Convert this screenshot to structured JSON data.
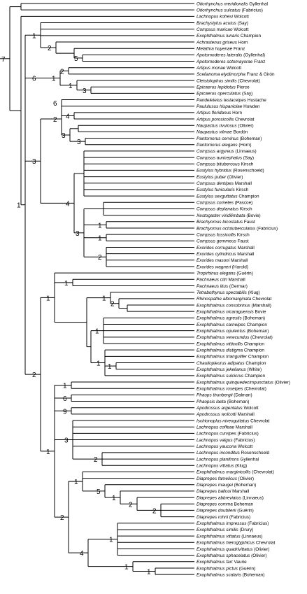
{
  "diagram": {
    "type": "cladogram",
    "taxa": [
      {
        "genus_species": "Otiorhynchus meridionalis",
        "authority": "Gyllenhal"
      },
      {
        "genus_species": "Otiorhynchus sulcatus",
        "authority": "(Fabricius)"
      },
      {
        "genus_species": "Lachnopus kofresi",
        "authority": "Wolcott"
      },
      {
        "genus_species": "Brachystylus acutus",
        "authority": "(Say)"
      },
      {
        "genus_species": "Compsus maricao",
        "authority": "Wolcott"
      },
      {
        "genus_species": "Exophthalmus lunaris",
        "authority": "Champion"
      },
      {
        "genus_species": "Achrastenus griseus",
        "authority": "Horn"
      },
      {
        "genus_species": "Melathra huyenae",
        "authority": "Franz"
      },
      {
        "genus_species": "Apotomoderes lateralis",
        "authority": "(Gyllenhal)"
      },
      {
        "genus_species": "Apotomoderes sotomayorae",
        "authority": "Franz"
      },
      {
        "genus_species": "Artipus monae",
        "authority": "Wolcott"
      },
      {
        "genus_species": "Scelianoma elydimorpha",
        "authority": "Franz & Girón"
      },
      {
        "genus_species": "Cleistolophus similis",
        "authority": "(Chevrolat)"
      },
      {
        "genus_species": "Epicaerus lepidotus",
        "authority": "Pierce"
      },
      {
        "genus_species": "Epicaerus operculatus",
        "authority": "(Say)"
      },
      {
        "genus_species": "Pandeleteius testaceipes",
        "authority": "Hustache"
      },
      {
        "genus_species": "Paululusus hispaniolae",
        "authority": "Howden"
      },
      {
        "genus_species": "Artipus floridanus",
        "authority": "Horn"
      },
      {
        "genus_species": "Artipus porosicollis",
        "authority": "Chevrolat"
      },
      {
        "genus_species": "Naupactus rivulosus",
        "authority": "(Olivier)"
      },
      {
        "genus_species": "Naupactus vilmae",
        "authority": "Bordón"
      },
      {
        "genus_species": "Pantomorus cervinus",
        "authority": "(Boheman)"
      },
      {
        "genus_species": "Pantomorus elegans",
        "authority": "(Horn)"
      },
      {
        "genus_species": "Compsus argyreus",
        "authority": "(Linnaeus)"
      },
      {
        "genus_species": "Compsus auricephalus",
        "authority": "(Say)"
      },
      {
        "genus_species": "Compsus bituberosus",
        "authority": "Kirsch"
      },
      {
        "genus_species": "Eustylus hybridus",
        "authority": "(Rosenschoeld)"
      },
      {
        "genus_species": "Eustylus puber",
        "authority": "(Olivier)"
      },
      {
        "genus_species": "Compsus dentipes",
        "authority": "Marshall"
      },
      {
        "genus_species": "Eustylus funicularis",
        "authority": "Kirsch"
      },
      {
        "genus_species": "Eustylus sexguttatus",
        "authority": "Champion"
      },
      {
        "genus_species": "Compsus cometes",
        "authority": "(Pascoe)"
      },
      {
        "genus_species": "Compsus deplanatus",
        "authority": "Kirsch"
      },
      {
        "genus_species": "Xestogaster viridilimbata",
        "authority": "(Bovie)"
      },
      {
        "genus_species": "Brachyomus bicostatus",
        "authority": "Faust"
      },
      {
        "genus_species": "Brachyomus octotuberculatus",
        "authority": "(Fabricius)"
      },
      {
        "genus_species": "Compsus fossicollis",
        "authority": "Kirsch"
      },
      {
        "genus_species": "Compsus gemmeus",
        "authority": "Faust"
      },
      {
        "genus_species": "Exorides corrugatus",
        "authority": "Marshall"
      },
      {
        "genus_species": "Exorides cylindricus",
        "authority": "Marshall"
      },
      {
        "genus_species": "Exorides masoni",
        "authority": "Marshall"
      },
      {
        "genus_species": "Exorides wagneri",
        "authority": "(Harold)"
      },
      {
        "genus_species": "Tropirhinus elegans",
        "authority": "(Guérin)"
      },
      {
        "genus_species": "Pachnaeus citri",
        "authority": "Marshall"
      },
      {
        "genus_species": "Pachnaeus litus",
        "authority": "(Germar)"
      },
      {
        "genus_species": "Tetrabothynus spectabilis",
        "authority": "(Klug)"
      },
      {
        "genus_species": "Rhinospathe albomarginata",
        "authority": "Chevrolat"
      },
      {
        "genus_species": "Exophthalmus consobrinus",
        "authority": "(Marshall)"
      },
      {
        "genus_species": "Exophthalmus nicaraguensis",
        "authority": "Bovie"
      },
      {
        "genus_species": "Exophthalmus agrestis",
        "authority": "(Boheman)"
      },
      {
        "genus_species": "Exophthalmus carneipes",
        "authority": "Champion"
      },
      {
        "genus_species": "Exophthalmus opulentus",
        "authority": "(Boheman)"
      },
      {
        "genus_species": "Exophthalmus verecundus",
        "authority": "(Chevrolat)"
      },
      {
        "genus_species": "Exophthalmus vitticollis",
        "authority": "Champion"
      },
      {
        "genus_species": "Exophthalmus distigma",
        "authority": "Champion"
      },
      {
        "genus_species": "Exophthalmus triangulifer",
        "authority": "Champion"
      },
      {
        "genus_species": "Chauliopleurus adipatus",
        "authority": "Champion"
      },
      {
        "genus_species": "Exophthalmus jekelianus",
        "authority": "(White)"
      },
      {
        "genus_species": "Exophthalmus sulcicrus",
        "authority": "Champion"
      },
      {
        "genus_species": "Exophthalmus quinquedecimpunctatus",
        "authority": "(Olivier)"
      },
      {
        "genus_species": "Exophthalmus roseipes",
        "authority": "(Chevrolat)"
      },
      {
        "genus_species": "Phaops thunbergii",
        "authority": "(Dalman)"
      },
      {
        "genus_species": "Phaopsis laeta",
        "authority": "(Boheman)"
      },
      {
        "genus_species": "Apodrossus argentatus",
        "authority": "Wolcott"
      },
      {
        "genus_species": "Apodrossus wolcotti",
        "authority": "Marshall"
      },
      {
        "genus_species": "Ischionoplus niveoguttatus",
        "authority": "Chevrolat"
      },
      {
        "genus_species": "Lachnopus coffeae",
        "authority": "Marshall"
      },
      {
        "genus_species": "Lachnopus curvipes",
        "authority": "(Fabricius)"
      },
      {
        "genus_species": "Lachnopus valgus",
        "authority": "(Fabricius)"
      },
      {
        "genus_species": "Lachnopus yaucona",
        "authority": "Wolcott"
      },
      {
        "genus_species": "Lachnopus inconditus",
        "authority": "Rosenschoeld"
      },
      {
        "genus_species": "Lachnopus planifrons",
        "authority": "Gyllenhal"
      },
      {
        "genus_species": "Lachnopus vittatus",
        "authority": "(Klug)"
      },
      {
        "genus_species": "Exophthalmus marginicollis",
        "authority": "(Chevrolat)"
      },
      {
        "genus_species": "Diaprepes famelicus",
        "authority": "(Olivier)"
      },
      {
        "genus_species": "Diaprepes maugei",
        "authority": "(Boheman)"
      },
      {
        "genus_species": "Diaprepes balloui",
        "authority": "Marshall"
      },
      {
        "genus_species": "Diaprepes abbreviatus",
        "authority": "(Linnaeus)"
      },
      {
        "genus_species": "Diaprepes comma",
        "authority": "Boheman"
      },
      {
        "genus_species": "Diaprepes doublierii",
        "authority": "(Guérin)"
      },
      {
        "genus_species": "Diaprepes rohrii",
        "authority": "(Fabricius)"
      },
      {
        "genus_species": "Exophthalmus impressus",
        "authority": "(Fabricius)"
      },
      {
        "genus_species": "Exophthalmus similis",
        "authority": "(Drury)"
      },
      {
        "genus_species": "Exophthalmus vittatus",
        "authority": "(Linnaeus)"
      },
      {
        "genus_species": "Exophthalmus hieroglyphicus",
        "authority": "Chevrolat"
      },
      {
        "genus_species": "Exophthalmus quadrivittatus",
        "authority": "(Olivier)"
      },
      {
        "genus_species": "Exophthalmus sphacelatus",
        "authority": "(Olivier)"
      },
      {
        "genus_species": "Exophthalmus farr",
        "authority": "Vaurie"
      },
      {
        "genus_species": "Exophthalmus pictus",
        "authority": "(Guérin)"
      },
      {
        "genus_species": "Exophthalmus scalaris",
        "authority": "(Boheman)"
      }
    ],
    "support_values": [
      "7",
      "1",
      "2",
      "5",
      "2",
      "1",
      "3",
      "6",
      "2",
      "4",
      "3",
      "3",
      "4",
      "3",
      "1",
      "1",
      "2",
      "1",
      "1",
      "1",
      "2",
      "1",
      "1",
      "1",
      "1",
      "1",
      "6",
      "9",
      "3",
      "2",
      "1",
      "5",
      "1",
      "2",
      "2",
      "2",
      "1",
      "4",
      "1",
      "1",
      "1",
      "1"
    ]
  }
}
